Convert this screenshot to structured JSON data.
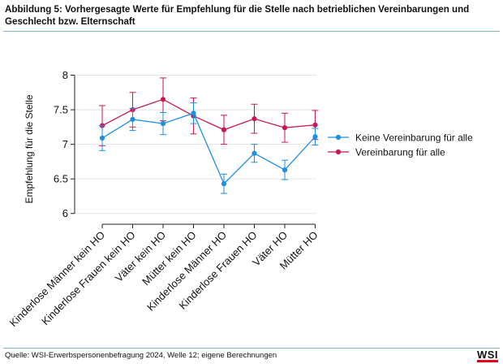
{
  "header": {
    "caption": "Abbildung 5: Vorhergesagte Werte für Empfehlung für die Stelle nach betrieblichen Vereinbarungen und Geschlecht bzw. Elternschaft"
  },
  "footer": {
    "source": "Quelle: WSI-Erwerbspersonenbefragung 2024, Welle 12; eigene Berechnungen",
    "logo": "WSI"
  },
  "chart_data": {
    "type": "line",
    "title": "",
    "ylabel": "Empfehlung für die Stelle",
    "xlabel": "",
    "ylim": [
      5.95,
      8.1
    ],
    "yticks": [
      6,
      6.5,
      7,
      7.5,
      8
    ],
    "ytick_labels": [
      "6",
      "6.5",
      "7",
      "7.5",
      "8"
    ],
    "categories": [
      "Kinderlose Männer kein HO",
      "Kinderlose Frauen kein HO",
      "Väter kein HO",
      "Mütter kein HO",
      "Kinderlose Männer HO",
      "Kinderlose Frauen HO",
      "Väter HO",
      "Mütter HO"
    ],
    "legend_position": "right",
    "series": [
      {
        "name": "Keine Vereinbarung für alle",
        "color": "#1f8fe0",
        "values": [
          7.09,
          7.36,
          7.3,
          7.45,
          6.43,
          6.87,
          6.63,
          7.11
        ],
        "ci_low": [
          6.91,
          7.2,
          7.14,
          7.3,
          6.29,
          6.74,
          6.49,
          6.99
        ],
        "ci_high": [
          7.27,
          7.52,
          7.46,
          7.6,
          6.57,
          7.0,
          6.77,
          7.23
        ]
      },
      {
        "name": "Vereinbarung für alle",
        "color": "#c8194f",
        "values": [
          7.27,
          7.5,
          7.65,
          7.41,
          7.21,
          7.37,
          7.24,
          7.28
        ],
        "ci_low": [
          6.98,
          7.25,
          7.34,
          7.15,
          7.0,
          7.16,
          7.03,
          7.07
        ],
        "ci_high": [
          7.56,
          7.75,
          7.96,
          7.67,
          7.42,
          7.58,
          7.45,
          7.49
        ]
      }
    ]
  }
}
